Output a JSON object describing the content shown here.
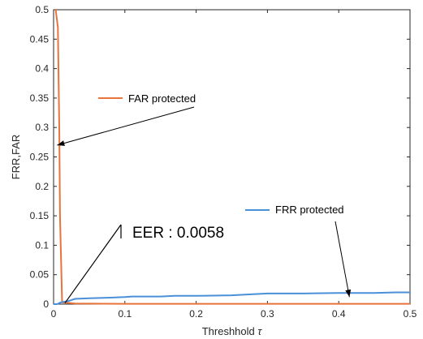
{
  "chart_data": {
    "type": "line",
    "xlabel": "Threshhold",
    "xlabel_symbol": "τ",
    "ylabel": "FRR,FAR",
    "xlim": [
      0,
      0.5
    ],
    "ylim": [
      0,
      0.5
    ],
    "xticks": [
      0,
      0.1,
      0.2,
      0.3,
      0.4,
      0.5
    ],
    "yticks": [
      0,
      0.05,
      0.1,
      0.15,
      0.2,
      0.25,
      0.3,
      0.35,
      0.4,
      0.45,
      0.5
    ],
    "grid": false,
    "series": [
      {
        "name": "FAR protected",
        "color": "#e8743b",
        "x": [
          0.002,
          0.003,
          0.006,
          0.008,
          0.009,
          0.012,
          0.03,
          0.1,
          0.2,
          0.3,
          0.4,
          0.5
        ],
        "y": [
          0.5,
          0.5,
          0.47,
          0.3,
          0.15,
          0.003,
          0.001,
          0.0005,
          0.0005,
          0.0005,
          0.0005,
          0.0005
        ]
      },
      {
        "name": "FRR protected",
        "color": "#4a90d9",
        "x": [
          0.0,
          0.005,
          0.01,
          0.02,
          0.03,
          0.05,
          0.08,
          0.1,
          0.11,
          0.15,
          0.17,
          0.2,
          0.25,
          0.28,
          0.3,
          0.35,
          0.4,
          0.45,
          0.48,
          0.5
        ],
        "y": [
          0.0,
          0.0,
          0.003,
          0.005,
          0.009,
          0.01,
          0.011,
          0.012,
          0.013,
          0.013,
          0.014,
          0.014,
          0.015,
          0.017,
          0.018,
          0.018,
          0.019,
          0.019,
          0.02,
          0.02
        ]
      }
    ],
    "annotations": [
      {
        "text": "FAR protected",
        "target": [
          0.005,
          0.27
        ]
      },
      {
        "text": "FRR protected",
        "target": [
          0.415,
          0.012
        ]
      },
      {
        "text": "EER : 0.0058",
        "target": [
          0.016,
          0.002
        ]
      }
    ]
  }
}
